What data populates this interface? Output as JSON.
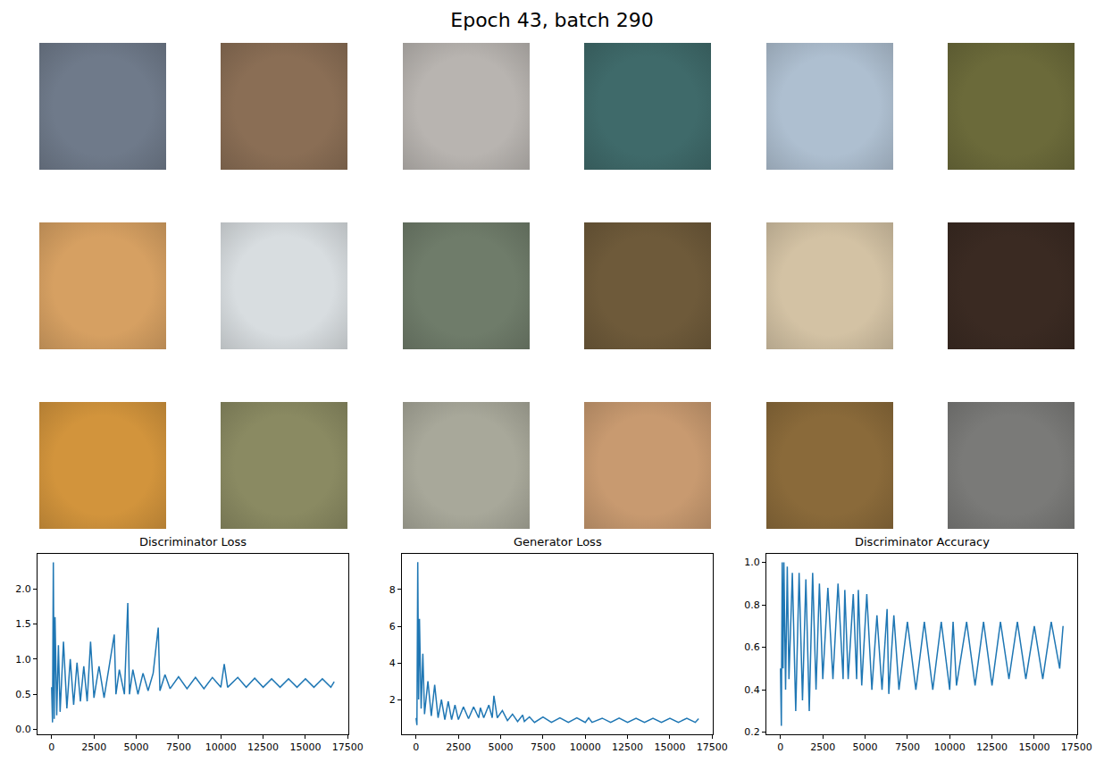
{
  "title": "Epoch 43, batch 290",
  "images": {
    "rows": 3,
    "cols": 6,
    "colors": [
      "#6f7a8a",
      "#8a6e55",
      "#b8b4b0",
      "#3f6a6a",
      "#aebfd0",
      "#6b6a3a",
      "#d6a062",
      "#d8dde0",
      "#6f7c6a",
      "#6e5a3a",
      "#d3c2a4",
      "#3a2a22",
      "#d2943c",
      "#8a8a62",
      "#a8a89a",
      "#c89a70",
      "#8a6a3a",
      "#7a7a78"
    ]
  },
  "chart_data": [
    {
      "type": "line",
      "title": "Discriminator Loss",
      "color": "#1f77b4",
      "grid": false,
      "x": [
        0,
        50,
        100,
        150,
        200,
        300,
        400,
        500,
        700,
        900,
        1100,
        1300,
        1500,
        1700,
        1900,
        2100,
        2300,
        2500,
        2800,
        3100,
        3400,
        3700,
        3800,
        4000,
        4300,
        4500,
        4600,
        4800,
        5100,
        5400,
        5700,
        6000,
        6300,
        6400,
        6700,
        7000,
        7500,
        8000,
        8500,
        9000,
        9500,
        10000,
        10200,
        10400,
        11000,
        11500,
        12000,
        12500,
        13000,
        13500,
        14000,
        14500,
        15000,
        15500,
        16000,
        16500,
        16700
      ],
      "values": [
        0.6,
        0.1,
        2.38,
        0.15,
        1.6,
        0.2,
        1.2,
        0.25,
        1.25,
        0.3,
        1.0,
        0.35,
        0.95,
        0.4,
        0.9,
        0.4,
        1.25,
        0.45,
        0.9,
        0.45,
        0.9,
        1.35,
        0.5,
        0.85,
        0.5,
        1.8,
        0.5,
        0.85,
        0.5,
        0.8,
        0.55,
        0.8,
        1.45,
        0.55,
        0.78,
        0.58,
        0.75,
        0.58,
        0.74,
        0.58,
        0.74,
        0.6,
        0.93,
        0.6,
        0.74,
        0.6,
        0.73,
        0.6,
        0.72,
        0.6,
        0.72,
        0.6,
        0.72,
        0.6,
        0.72,
        0.6,
        0.68
      ],
      "xlim": [
        -835,
        17535
      ],
      "xticks": [
        0,
        2500,
        5000,
        7500,
        10000,
        12500,
        15000,
        17500
      ],
      "ylim": [
        -0.07,
        2.5
      ],
      "yticks": [
        {
          "value": 0,
          "label": "0.0"
        },
        {
          "value": 0.5,
          "label": "0.5"
        },
        {
          "value": 1,
          "label": "1.0"
        },
        {
          "value": 1.5,
          "label": "1.5"
        },
        {
          "value": 2,
          "label": "2.0"
        }
      ]
    },
    {
      "type": "line",
      "title": "Generator Loss",
      "color": "#1f77b4",
      "grid": false,
      "x": [
        0,
        50,
        100,
        150,
        200,
        300,
        400,
        500,
        700,
        900,
        1100,
        1300,
        1500,
        1700,
        1900,
        2100,
        2300,
        2500,
        2800,
        3100,
        3400,
        3700,
        3800,
        4000,
        4300,
        4500,
        4600,
        4800,
        5100,
        5400,
        5700,
        6000,
        6300,
        6400,
        6700,
        7000,
        7500,
        8000,
        8500,
        9000,
        9500,
        10000,
        10200,
        10400,
        11000,
        11500,
        12000,
        12500,
        13000,
        13500,
        14000,
        14500,
        15000,
        15500,
        16000,
        16500,
        16700
      ],
      "values": [
        1.0,
        0.6,
        9.5,
        2.0,
        6.4,
        1.5,
        4.5,
        1.2,
        3.0,
        1.1,
        2.8,
        1.0,
        2.0,
        0.9,
        1.9,
        0.9,
        1.7,
        0.9,
        1.6,
        0.95,
        1.6,
        1.0,
        1.55,
        1.0,
        1.7,
        1.0,
        2.2,
        1.0,
        1.4,
        0.85,
        1.2,
        0.8,
        1.15,
        0.8,
        1.05,
        0.75,
        1.05,
        0.75,
        1.0,
        0.75,
        1.0,
        0.75,
        1.0,
        0.75,
        0.98,
        0.75,
        0.98,
        0.75,
        0.97,
        0.75,
        0.97,
        0.75,
        0.97,
        0.75,
        0.97,
        0.75,
        0.95
      ],
      "xlim": [
        -835,
        17535
      ],
      "xticks": [
        0,
        2500,
        5000,
        7500,
        10000,
        12500,
        15000,
        17500
      ],
      "ylim": [
        0.1,
        9.95
      ],
      "yticks": [
        2,
        4,
        6,
        8
      ]
    },
    {
      "type": "line",
      "title": "Discriminator Accuracy",
      "color": "#1f77b4",
      "grid": false,
      "x": [
        0,
        50,
        100,
        150,
        200,
        300,
        400,
        500,
        700,
        900,
        1100,
        1300,
        1500,
        1700,
        1900,
        2100,
        2300,
        2500,
        2800,
        3100,
        3400,
        3700,
        3800,
        4000,
        4300,
        4500,
        4600,
        4800,
        5100,
        5400,
        5700,
        6000,
        6300,
        6400,
        6700,
        7000,
        7500,
        8000,
        8500,
        9000,
        9500,
        10000,
        10200,
        10400,
        11000,
        11500,
        12000,
        12500,
        13000,
        13500,
        14000,
        14500,
        15000,
        15500,
        16000,
        16500,
        16700
      ],
      "values": [
        0.5,
        0.23,
        1.0,
        0.5,
        1.0,
        0.4,
        0.98,
        0.45,
        0.95,
        0.3,
        0.95,
        0.35,
        0.92,
        0.3,
        0.95,
        0.4,
        0.9,
        0.45,
        0.88,
        0.45,
        0.9,
        0.45,
        0.87,
        0.45,
        0.85,
        0.45,
        0.87,
        0.42,
        0.85,
        0.4,
        0.75,
        0.4,
        0.78,
        0.38,
        0.75,
        0.4,
        0.72,
        0.4,
        0.72,
        0.4,
        0.72,
        0.4,
        0.72,
        0.42,
        0.72,
        0.42,
        0.72,
        0.42,
        0.72,
        0.45,
        0.72,
        0.45,
        0.7,
        0.45,
        0.72,
        0.5,
        0.7
      ],
      "xlim": [
        -835,
        17535
      ],
      "xticks": [
        0,
        2500,
        5000,
        7500,
        10000,
        12500,
        15000,
        17500
      ],
      "ylim": [
        0.19,
        1.04
      ],
      "yticks": [
        0.2,
        0.4,
        0.6,
        0.8,
        {
          "value": 1,
          "label": "1.0"
        }
      ]
    }
  ]
}
